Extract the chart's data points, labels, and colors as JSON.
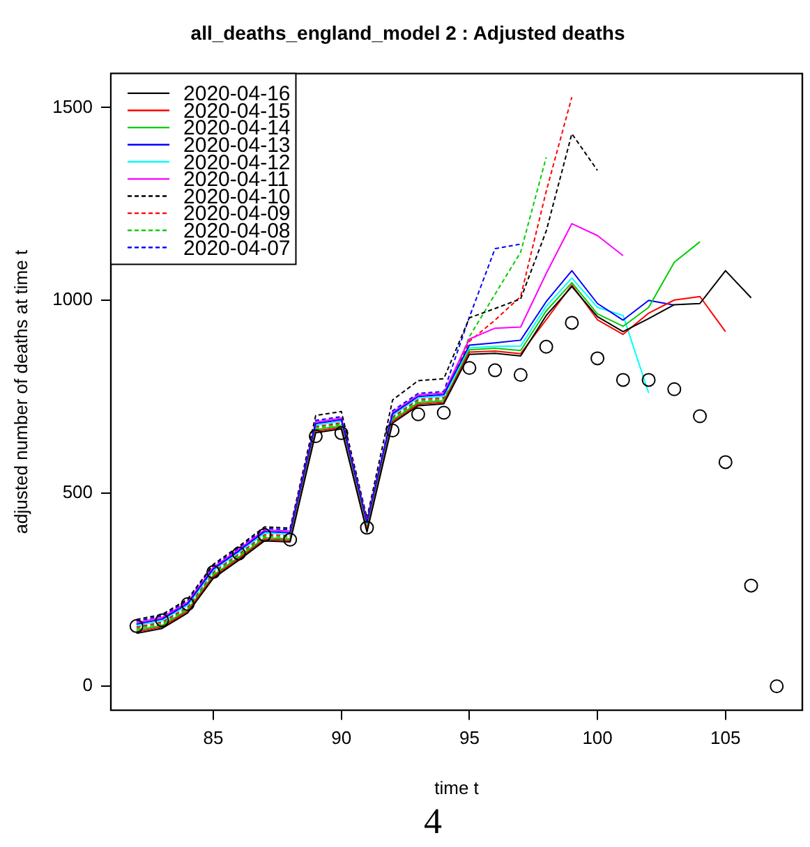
{
  "chart_data": {
    "type": "line",
    "title": "all_deaths_england_model 2 : Adjusted deaths",
    "xlabel": "time t",
    "ylabel": "adjusted number of deaths at time t",
    "annotations": [
      "4"
    ],
    "x": [
      82,
      83,
      84,
      85,
      86,
      87,
      88,
      89,
      90,
      91,
      92,
      93,
      94,
      95,
      96,
      97,
      98,
      99,
      100,
      101,
      102,
      103,
      104,
      105,
      106,
      107
    ],
    "xlim": [
      81,
      108
    ],
    "xticks": [
      85,
      90,
      95,
      100,
      105
    ],
    "ylim": [
      -62,
      1588
    ],
    "yticks": [
      0,
      500,
      1000,
      1500
    ],
    "legend": "top left",
    "series": [
      {
        "name": "2020-04-16",
        "color": "#000000",
        "line_style": "solid",
        "values": [
          137,
          150,
          190,
          280,
          327,
          377,
          374,
          657,
          667,
          400,
          682,
          727,
          732,
          860,
          863,
          856,
          961,
          1036,
          958,
          919,
          953,
          989,
          992,
          1077,
          1007,
          null
        ]
      },
      {
        "name": "2020-04-15",
        "color": "#ff0000",
        "line_style": "solid",
        "values": [
          141,
          154,
          194,
          284,
          331,
          381,
          378,
          661,
          671,
          404,
          686,
          731,
          736,
          866,
          869,
          862,
          950,
          1040,
          950,
          912,
          967,
          1001,
          1010,
          919,
          null,
          null
        ]
      },
      {
        "name": "2020-04-14",
        "color": "#00cd00",
        "line_style": "solid",
        "values": [
          145,
          158,
          198,
          288,
          335,
          385,
          382,
          665,
          675,
          408,
          690,
          735,
          740,
          872,
          876,
          870,
          973,
          1046,
          965,
          933,
          982,
          1099,
          1152,
          null,
          null,
          null
        ]
      },
      {
        "name": "2020-04-13",
        "color": "#0000ff",
        "line_style": "solid",
        "values": [
          161,
          174,
          214,
          304,
          351,
          401,
          398,
          681,
          691,
          424,
          706,
          751,
          756,
          884,
          890,
          897,
          997,
          1077,
          992,
          949,
          1000,
          988,
          null,
          null,
          null,
          null
        ]
      },
      {
        "name": "2020-04-12",
        "color": "#00ffff",
        "line_style": "solid",
        "values": [
          157,
          170,
          210,
          300,
          347,
          397,
          394,
          677,
          687,
          420,
          702,
          747,
          752,
          877,
          881,
          882,
          985,
          1058,
          982,
          961,
          760,
          null,
          null,
          null,
          null,
          null
        ]
      },
      {
        "name": "2020-04-11",
        "color": "#ff00ff",
        "line_style": "solid",
        "values": [
          165,
          178,
          218,
          308,
          355,
          405,
          402,
          685,
          695,
          428,
          710,
          755,
          760,
          900,
          928,
          931,
          1070,
          1199,
          1168,
          1116,
          null,
          null,
          null,
          null,
          null,
          null
        ]
      },
      {
        "name": "2020-04-10",
        "color": "#000000",
        "line_style": "dashed",
        "values": [
          173,
          186,
          226,
          316,
          363,
          413,
          410,
          702,
          712,
          436,
          742,
          792,
          797,
          955,
          979,
          1004,
          1180,
          1432,
          1337,
          null,
          null,
          null,
          null,
          null,
          null,
          null
        ]
      },
      {
        "name": "2020-04-09",
        "color": "#ff0000",
        "line_style": "dashed",
        "values": [
          153,
          166,
          206,
          296,
          343,
          393,
          390,
          673,
          683,
          416,
          698,
          743,
          748,
          894,
          949,
          1010,
          1283,
          1527,
          null,
          null,
          null,
          null,
          null,
          null,
          null,
          null
        ]
      },
      {
        "name": "2020-04-08",
        "color": "#00cd00",
        "line_style": "dashed",
        "values": [
          149,
          162,
          202,
          292,
          339,
          389,
          386,
          669,
          679,
          412,
          694,
          739,
          744,
          906,
          1016,
          1125,
          1371,
          null,
          null,
          null,
          null,
          null,
          null,
          null,
          null,
          null
        ]
      },
      {
        "name": "2020-04-07",
        "color": "#0000ff",
        "line_style": "dashed",
        "values": [
          169,
          182,
          222,
          312,
          359,
          409,
          406,
          689,
          699,
          432,
          714,
          759,
          764,
          957,
          1134,
          1146,
          null,
          null,
          null,
          null,
          null,
          null,
          null,
          null,
          null,
          null
        ]
      },
      {
        "type": "scatter",
        "color": "#000000",
        "marker": "circle",
        "values": [
          156,
          171,
          213,
          296,
          344,
          392,
          380,
          648,
          656,
          411,
          663,
          705,
          709,
          825,
          819,
          807,
          880,
          942,
          850,
          794,
          794,
          770,
          700,
          581,
          261,
          0
        ]
      }
    ]
  }
}
